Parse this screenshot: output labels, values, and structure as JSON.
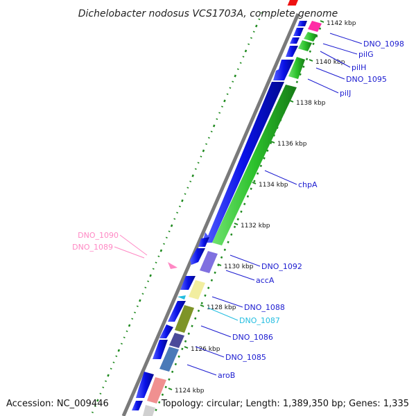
{
  "title": "Dichelobacter nodosus VCS1703A, complete genome",
  "footer": {
    "accession": "Accession: NC_009446",
    "summary": "Topology: circular; Length: 1,389,350 bp; Genes: 1,335"
  },
  "colors": {
    "forward_gene": "#0a12e8",
    "cds_green": "#2cc12c",
    "backbone": "#808080",
    "gc_skew": "#1f8a1f",
    "label_dark_blue": "#1a1ad0",
    "label_pink": "#ff88c4",
    "label_cyan": "#22bde0",
    "accA": "#8070e0",
    "DNO_1087": "#f2eea0",
    "DNO_1086": "#7e9428",
    "DNO_1085": "#4a7ab8",
    "aroB": "#f09090",
    "pilG": "#ff2ca6"
  },
  "scale_labels": [
    "1142 kbp",
    "1140 kbp",
    "1138 kbp",
    "1136 kbp",
    "1134 kbp",
    "1132 kbp",
    "1130 kbp",
    "1128 kbp",
    "1126 kbp",
    "1124 kbp"
  ],
  "gene_labels": [
    {
      "name": "DNO_1098",
      "color": "#1a1ad0"
    },
    {
      "name": "pilG",
      "color": "#1a1ad0"
    },
    {
      "name": "pilH",
      "color": "#1a1ad0"
    },
    {
      "name": "DNO_1095",
      "color": "#1a1ad0"
    },
    {
      "name": "pilJ",
      "color": "#1a1ad0"
    },
    {
      "name": "chpA",
      "color": "#1a1ad0"
    },
    {
      "name": "DNO_1092",
      "color": "#1a1ad0"
    },
    {
      "name": "accA",
      "color": "#1a1ad0"
    },
    {
      "name": "DNO_1088",
      "color": "#1a1ad0"
    },
    {
      "name": "DNO_1087",
      "color": "#22bde0"
    },
    {
      "name": "DNO_1086",
      "color": "#1a1ad0"
    },
    {
      "name": "DNO_1085",
      "color": "#1a1ad0"
    },
    {
      "name": "aroB",
      "color": "#1a1ad0"
    },
    {
      "name": "DNO_1090",
      "color": "#ff88c4"
    },
    {
      "name": "DNO_1089",
      "color": "#ff88c4"
    }
  ]
}
